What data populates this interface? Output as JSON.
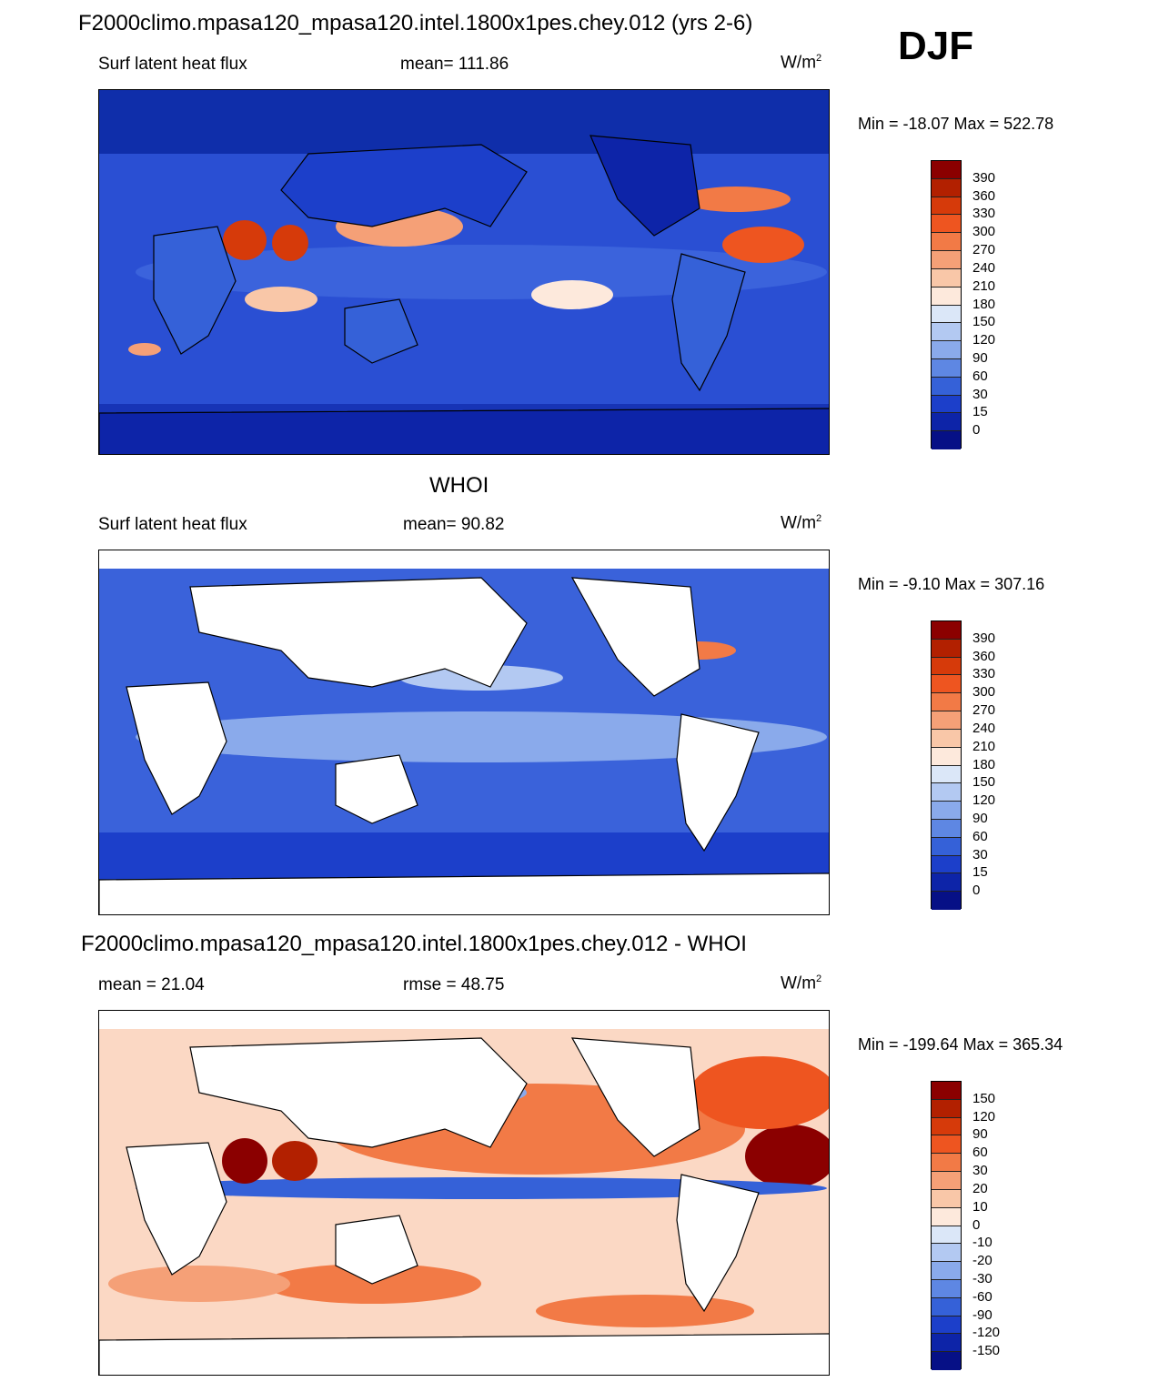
{
  "header": {
    "title": "F2000climo.mpasa120_mpasa120.intel.1800x1pes.chey.012 (yrs 2-6)",
    "season": "DJF"
  },
  "panels": [
    {
      "id": "model",
      "title": "",
      "left_label": "Surf latent heat flux",
      "center_label": "mean= 111.86",
      "units_base": "W/m",
      "units_exp": "2",
      "minmax": "Min = -18.07 Max = 522.78",
      "colorbar": {
        "levels": [
          "390",
          "360",
          "330",
          "300",
          "270",
          "240",
          "210",
          "180",
          "150",
          "120",
          "90",
          "60",
          "30",
          "15",
          "0"
        ],
        "colors": [
          "#8b0000",
          "#b22000",
          "#d63a0a",
          "#ee5520",
          "#f27a46",
          "#f5a077",
          "#f9c7a8",
          "#fde9dc",
          "#dbe7f8",
          "#b3c9f2",
          "#8aaaeb",
          "#5e87e3",
          "#3561d8",
          "#1c3fca",
          "#0d24a8",
          "#061086"
        ]
      },
      "map_bg": "#2a4fd3"
    },
    {
      "id": "obs",
      "title": "WHOI",
      "left_label": "Surf latent heat flux",
      "center_label": "mean=  90.82",
      "units_base": "W/m",
      "units_exp": "2",
      "minmax": "Min =  -9.10 Max = 307.16",
      "colorbar": {
        "levels": [
          "390",
          "360",
          "330",
          "300",
          "270",
          "240",
          "210",
          "180",
          "150",
          "120",
          "90",
          "60",
          "30",
          "15",
          "0"
        ],
        "colors": [
          "#8b0000",
          "#b22000",
          "#d63a0a",
          "#ee5520",
          "#f27a46",
          "#f5a077",
          "#f9c7a8",
          "#fde9dc",
          "#dbe7f8",
          "#b3c9f2",
          "#8aaaeb",
          "#5e87e3",
          "#3561d8",
          "#1c3fca",
          "#0d24a8",
          "#061086"
        ]
      },
      "map_bg": "#3a62da"
    },
    {
      "id": "diff",
      "title": "F2000climo.mpasa120_mpasa120.intel.1800x1pes.chey.012 - WHOI",
      "left_label": "mean =  21.04",
      "center_label": "rmse =  48.75",
      "units_base": "W/m",
      "units_exp": "2",
      "minmax": "Min = -199.64 Max = 365.34",
      "colorbar": {
        "levels": [
          "150",
          "120",
          "90",
          "60",
          "30",
          "20",
          "10",
          "0",
          "-10",
          "-20",
          "-30",
          "-60",
          "-90",
          "-120",
          "-150"
        ],
        "colors": [
          "#8b0000",
          "#b22000",
          "#d63a0a",
          "#ee5520",
          "#f27a46",
          "#f5a077",
          "#f9c7a8",
          "#fde9dc",
          "#dbe7f8",
          "#b3c9f2",
          "#8aaaeb",
          "#5e87e3",
          "#3561d8",
          "#1c3fca",
          "#0d24a8",
          "#061086"
        ]
      },
      "map_bg": "#fbd8c4"
    }
  ]
}
